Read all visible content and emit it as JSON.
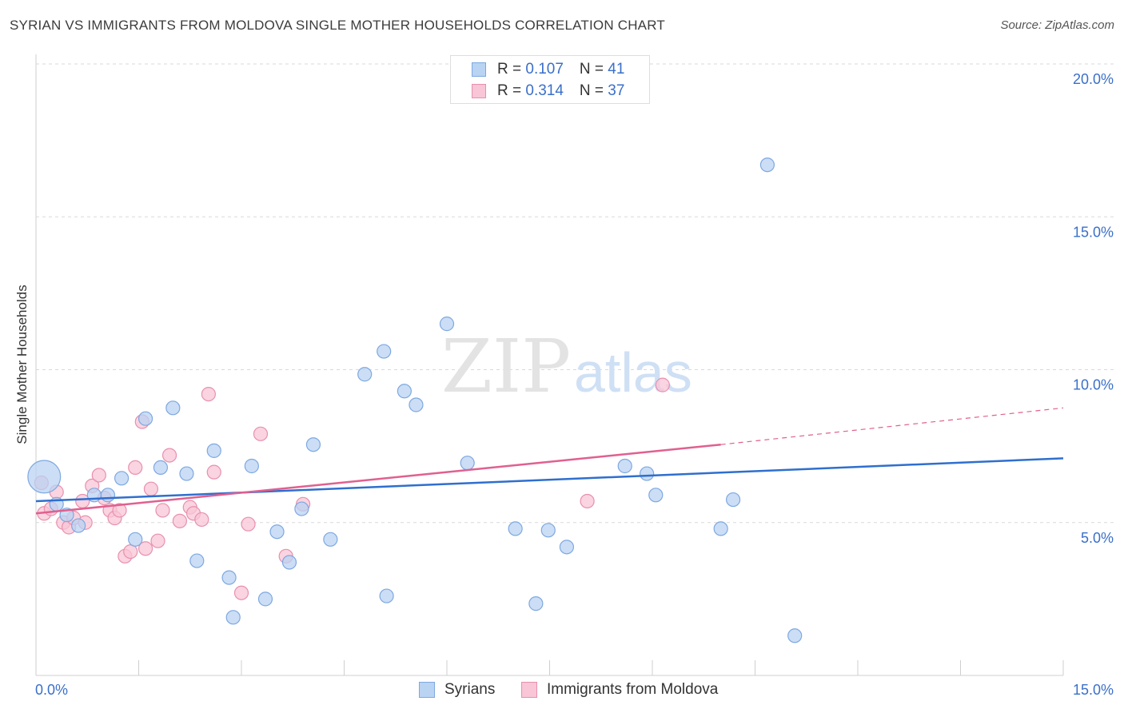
{
  "header": {
    "title": "SYRIAN VS IMMIGRANTS FROM MOLDOVA SINGLE MOTHER HOUSEHOLDS CORRELATION CHART",
    "source": "Source: ZipAtlas.com"
  },
  "watermark": {
    "zip": "ZIP",
    "atlas": "atlas"
  },
  "colors": {
    "syrians_fill": "#b9d3f3",
    "syrians_stroke": "#7ea8e0",
    "syrians_line": "#2f6fce",
    "moldova_fill": "#f8c6d6",
    "moldova_stroke": "#e890ae",
    "moldova_line": "#e0608f",
    "axis_label": "#3a6fc9",
    "grid": "#d9d9d9"
  },
  "legend": {
    "rows": [
      {
        "r_label": "R = ",
        "r_value": "0.107",
        "n_label": "N = ",
        "n_value": "41"
      },
      {
        "r_label": "R = ",
        "r_value": "0.314",
        "n_label": "N = ",
        "n_value": "37"
      }
    ]
  },
  "bottom_legend": {
    "syrians": "Syrians",
    "moldova": "Immigrants from Moldova"
  },
  "chart_data": {
    "type": "scatter",
    "title": "SYRIAN VS IMMIGRANTS FROM MOLDOVA SINGLE MOTHER HOUSEHOLDS CORRELATION CHART",
    "xlabel": "",
    "ylabel": "Single Mother Households",
    "xlim": [
      0,
      15
    ],
    "ylim": [
      0,
      20
    ],
    "x_tick_labels": [
      "0.0%",
      "15.0%"
    ],
    "y_ticks": [
      5,
      10,
      15,
      20
    ],
    "y_tick_labels": [
      "5.0%",
      "10.0%",
      "15.0%",
      "20.0%"
    ],
    "grid": true,
    "series": [
      {
        "name": "Syrians",
        "r": 0.107,
        "n": 41,
        "trend": {
          "x0": 0,
          "y0": 5.7,
          "x1": 15,
          "y1": 7.1
        },
        "points": [
          {
            "x": 0.12,
            "y": 6.5,
            "s": 2.4
          },
          {
            "x": 0.3,
            "y": 5.6
          },
          {
            "x": 0.45,
            "y": 5.25
          },
          {
            "x": 0.62,
            "y": 4.9
          },
          {
            "x": 0.85,
            "y": 5.9
          },
          {
            "x": 1.05,
            "y": 5.9
          },
          {
            "x": 1.25,
            "y": 6.45
          },
          {
            "x": 1.45,
            "y": 4.45
          },
          {
            "x": 1.6,
            "y": 8.4
          },
          {
            "x": 1.82,
            "y": 6.8
          },
          {
            "x": 2.0,
            "y": 8.75
          },
          {
            "x": 2.2,
            "y": 6.6
          },
          {
            "x": 2.35,
            "y": 3.75
          },
          {
            "x": 2.6,
            "y": 7.35
          },
          {
            "x": 2.82,
            "y": 3.2
          },
          {
            "x": 2.88,
            "y": 1.9
          },
          {
            "x": 3.15,
            "y": 6.85
          },
          {
            "x": 3.35,
            "y": 2.5
          },
          {
            "x": 3.52,
            "y": 4.7
          },
          {
            "x": 3.7,
            "y": 3.7
          },
          {
            "x": 3.88,
            "y": 5.45
          },
          {
            "x": 4.05,
            "y": 7.55
          },
          {
            "x": 4.3,
            "y": 4.45
          },
          {
            "x": 4.8,
            "y": 9.85
          },
          {
            "x": 5.08,
            "y": 10.6
          },
          {
            "x": 5.12,
            "y": 2.6
          },
          {
            "x": 5.38,
            "y": 9.3
          },
          {
            "x": 5.55,
            "y": 8.85
          },
          {
            "x": 6.0,
            "y": 11.5
          },
          {
            "x": 6.3,
            "y": 6.95
          },
          {
            "x": 7.0,
            "y": 4.8
          },
          {
            "x": 7.3,
            "y": 2.35
          },
          {
            "x": 7.48,
            "y": 4.75
          },
          {
            "x": 7.75,
            "y": 4.2
          },
          {
            "x": 8.6,
            "y": 6.85
          },
          {
            "x": 8.92,
            "y": 6.6
          },
          {
            "x": 9.05,
            "y": 5.9
          },
          {
            "x": 10.0,
            "y": 4.8
          },
          {
            "x": 10.18,
            "y": 5.75
          },
          {
            "x": 10.68,
            "y": 16.7
          },
          {
            "x": 11.08,
            "y": 1.3
          }
        ]
      },
      {
        "name": "Immigrants from Moldova",
        "r": 0.314,
        "n": 37,
        "trend": {
          "x0": 0,
          "y0": 5.3,
          "x1": 10.0,
          "y1": 7.55,
          "dash_x1": 15,
          "dash_y1": 8.75
        },
        "points": [
          {
            "x": 0.08,
            "y": 6.3
          },
          {
            "x": 0.12,
            "y": 5.3
          },
          {
            "x": 0.22,
            "y": 5.45
          },
          {
            "x": 0.3,
            "y": 6.0
          },
          {
            "x": 0.4,
            "y": 5.0
          },
          {
            "x": 0.48,
            "y": 4.85
          },
          {
            "x": 0.55,
            "y": 5.15
          },
          {
            "x": 0.68,
            "y": 5.7
          },
          {
            "x": 0.72,
            "y": 5.0
          },
          {
            "x": 0.82,
            "y": 6.2
          },
          {
            "x": 0.92,
            "y": 6.55
          },
          {
            "x": 1.0,
            "y": 5.8
          },
          {
            "x": 1.08,
            "y": 5.4
          },
          {
            "x": 1.15,
            "y": 5.15
          },
          {
            "x": 1.22,
            "y": 5.4
          },
          {
            "x": 1.3,
            "y": 3.9
          },
          {
            "x": 1.38,
            "y": 4.05
          },
          {
            "x": 1.45,
            "y": 6.8
          },
          {
            "x": 1.55,
            "y": 8.3
          },
          {
            "x": 1.6,
            "y": 4.15
          },
          {
            "x": 1.68,
            "y": 6.1
          },
          {
            "x": 1.78,
            "y": 4.4
          },
          {
            "x": 1.85,
            "y": 5.4
          },
          {
            "x": 1.95,
            "y": 7.2
          },
          {
            "x": 2.1,
            "y": 5.05
          },
          {
            "x": 2.25,
            "y": 5.5
          },
          {
            "x": 2.3,
            "y": 5.3
          },
          {
            "x": 2.42,
            "y": 5.1
          },
          {
            "x": 2.52,
            "y": 9.2
          },
          {
            "x": 2.6,
            "y": 6.65
          },
          {
            "x": 3.0,
            "y": 2.7
          },
          {
            "x": 3.1,
            "y": 4.95
          },
          {
            "x": 3.28,
            "y": 7.9
          },
          {
            "x": 3.65,
            "y": 3.9
          },
          {
            "x": 3.9,
            "y": 5.6
          },
          {
            "x": 8.05,
            "y": 5.7
          },
          {
            "x": 9.15,
            "y": 9.5
          }
        ]
      }
    ]
  }
}
